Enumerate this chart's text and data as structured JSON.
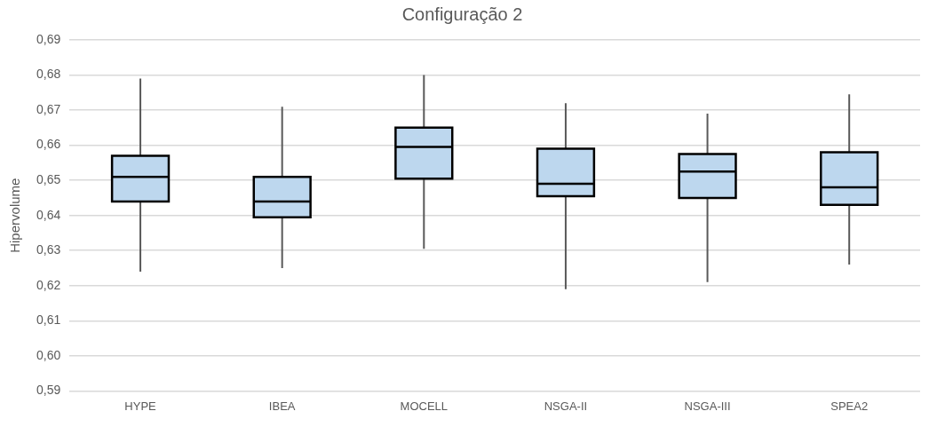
{
  "chart_data": {
    "type": "box",
    "title": "Configuração 2",
    "ylabel": "Hipervolume",
    "categories": [
      "HYPE",
      "IBEA",
      "MOCELL",
      "NSGA-II",
      "NSGA-III",
      "SPEA2"
    ],
    "color": "#bdd7ee",
    "boxes": [
      {
        "low": 0.624,
        "q1": 0.644,
        "median": 0.651,
        "q3": 0.657,
        "high": 0.679
      },
      {
        "low": 0.625,
        "q1": 0.6395,
        "median": 0.644,
        "q3": 0.651,
        "high": 0.671
      },
      {
        "low": 0.6305,
        "q1": 0.6505,
        "median": 0.6595,
        "q3": 0.665,
        "high": 0.68
      },
      {
        "low": 0.619,
        "q1": 0.6455,
        "median": 0.649,
        "q3": 0.659,
        "high": 0.672
      },
      {
        "low": 0.621,
        "q1": 0.645,
        "median": 0.6525,
        "q3": 0.6575,
        "high": 0.669
      },
      {
        "low": 0.626,
        "q1": 0.643,
        "median": 0.648,
        "q3": 0.658,
        "high": 0.6745
      }
    ],
    "ylim": [
      0.59,
      0.69
    ],
    "yticks": [
      {
        "value": 0.59,
        "label": "0,59"
      },
      {
        "value": 0.6,
        "label": "0,60"
      },
      {
        "value": 0.61,
        "label": "0,61"
      },
      {
        "value": 0.62,
        "label": "0,62"
      },
      {
        "value": 0.63,
        "label": "0,63"
      },
      {
        "value": 0.64,
        "label": "0,64"
      },
      {
        "value": 0.65,
        "label": "0,65"
      },
      {
        "value": 0.66,
        "label": "0,66"
      },
      {
        "value": 0.67,
        "label": "0,67"
      },
      {
        "value": 0.68,
        "label": "0,68"
      },
      {
        "value": 0.69,
        "label": "0,69"
      }
    ],
    "grid": "y"
  }
}
